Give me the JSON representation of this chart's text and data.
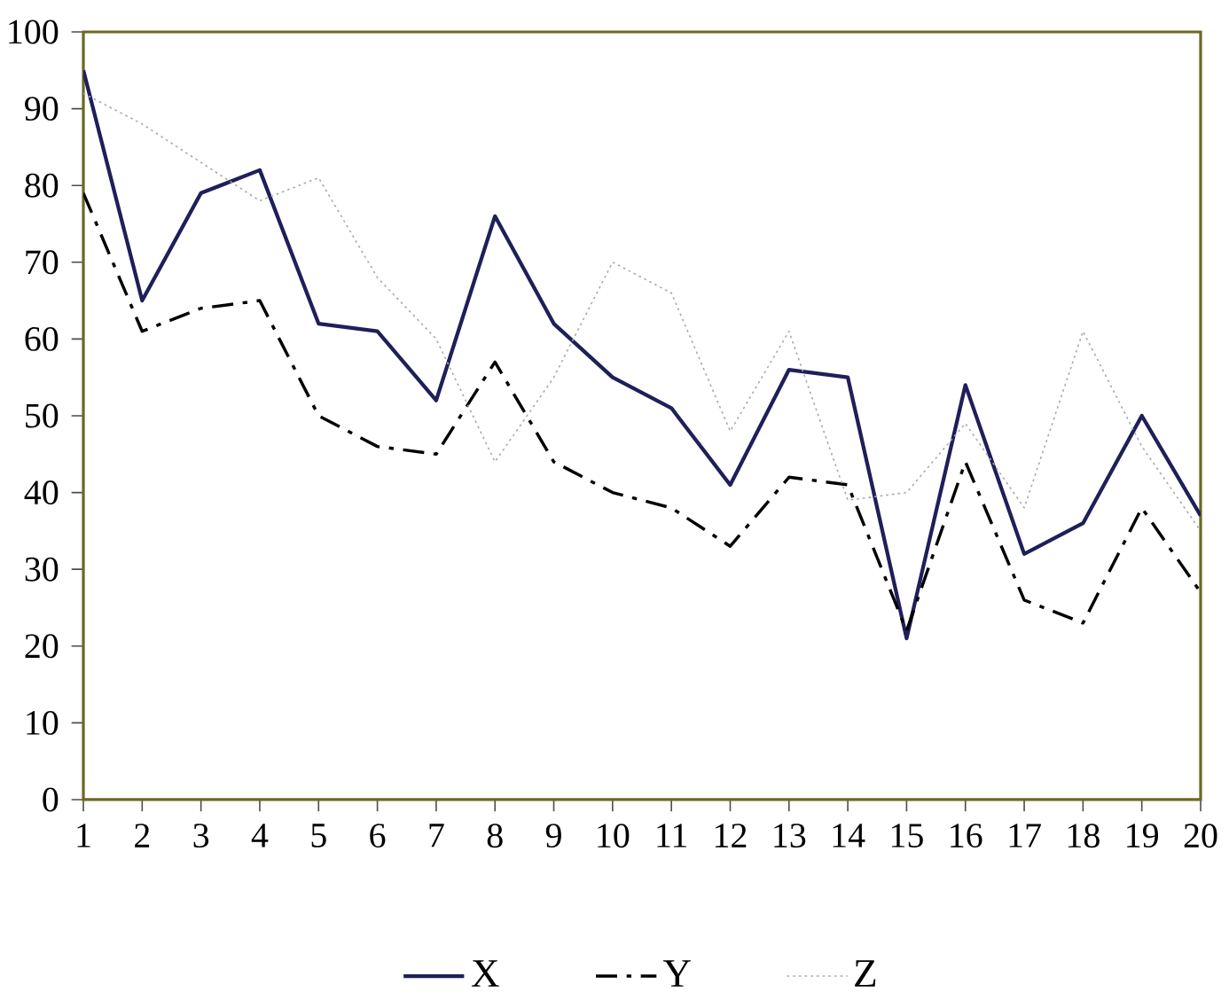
{
  "chart_data": {
    "type": "line",
    "categories": [
      "1",
      "2",
      "3",
      "4",
      "5",
      "6",
      "7",
      "8",
      "9",
      "10",
      "11",
      "12",
      "13",
      "14",
      "15",
      "16",
      "17",
      "18",
      "19",
      "20"
    ],
    "series": [
      {
        "name": "X",
        "color": "#1f1f5a",
        "line_style": "solid",
        "values": [
          95,
          65,
          79,
          82,
          62,
          61,
          52,
          76,
          62,
          55,
          51,
          41,
          56,
          55,
          21,
          54,
          32,
          36,
          50,
          37
        ]
      },
      {
        "name": "Y",
        "color": "#000000",
        "line_style": "dashdot",
        "values": [
          79,
          61,
          64,
          65,
          50,
          46,
          45,
          57,
          44,
          40,
          38,
          33,
          42,
          41,
          22,
          44,
          26,
          23,
          38,
          27
        ]
      },
      {
        "name": "Z",
        "color": "#aaaaaa",
        "line_style": "dotted",
        "values": [
          92,
          88,
          83,
          78,
          81,
          68,
          60,
          44,
          55,
          70,
          66,
          48,
          61,
          39,
          40,
          49,
          38,
          61,
          46,
          35
        ]
      }
    ],
    "ylim": [
      0,
      100
    ],
    "yticks": [
      0,
      10,
      20,
      30,
      40,
      50,
      60,
      70,
      80,
      90,
      100
    ],
    "grid": false,
    "legend": "bottom",
    "marker": "none"
  }
}
